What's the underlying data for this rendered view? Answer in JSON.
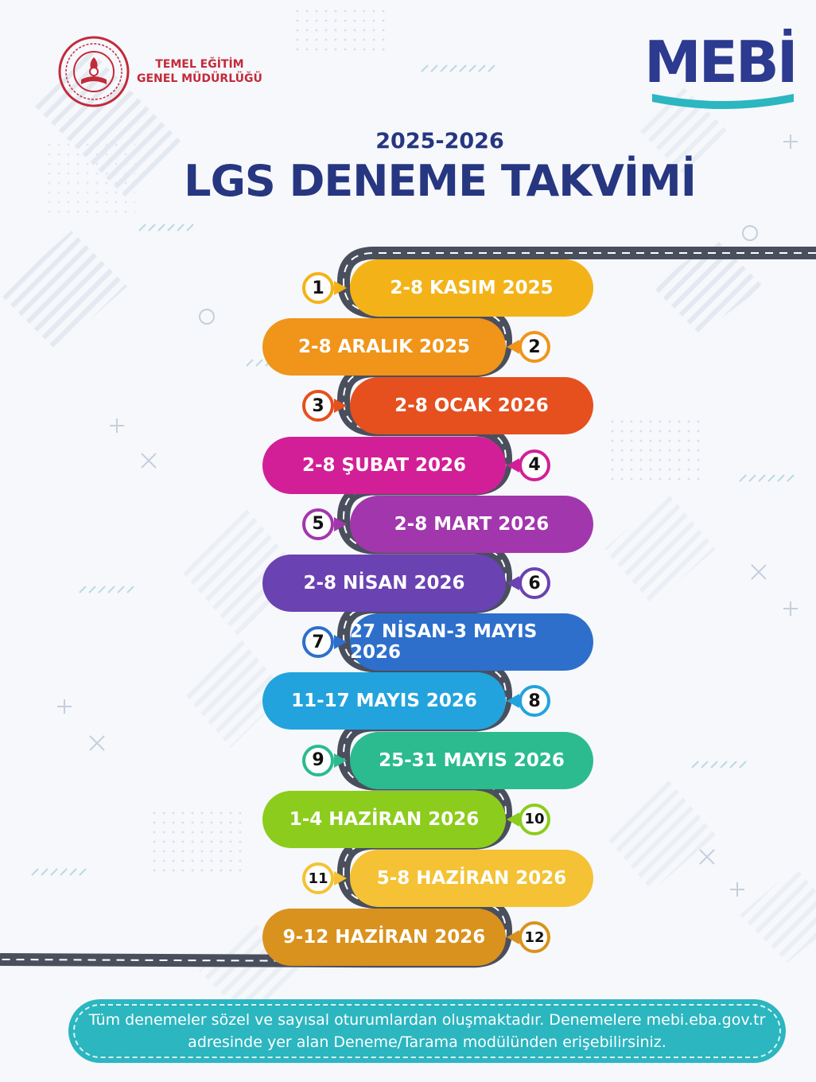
{
  "header": {
    "org_line1": "TEMEL EĞİTİM",
    "org_line2": "GENEL MÜDÜRLÜĞÜ",
    "brand": "MEBİ",
    "year": "2025-2026",
    "title": "LGS DENEME TAKVİMİ"
  },
  "colors": {
    "title": "#263680",
    "brand": "#2c3a8f",
    "accent": "#2bb6c0",
    "road": "#4a4f5e"
  },
  "exams": [
    {
      "number": "1",
      "label": "2-8 KASIM 2025",
      "color": "#f3b318"
    },
    {
      "number": "2",
      "label": "2-8 ARALIK 2025",
      "color": "#f0941a"
    },
    {
      "number": "3",
      "label": "2-8 OCAK 2026",
      "color": "#e5501e"
    },
    {
      "number": "4",
      "label": "2-8 ŞUBAT 2026",
      "color": "#d21f97"
    },
    {
      "number": "5",
      "label": "2-8 MART 2026",
      "color": "#a236ad"
    },
    {
      "number": "6",
      "label": "2-8 NİSAN 2026",
      "color": "#6a42b2"
    },
    {
      "number": "7",
      "label": "27 NİSAN-3 MAYIS 2026",
      "color": "#2d6fcb"
    },
    {
      "number": "8",
      "label": "11-17 MAYIS 2026",
      "color": "#22a3dd"
    },
    {
      "number": "9",
      "label": "25-31 MAYIS 2026",
      "color": "#2bbb8e"
    },
    {
      "number": "10",
      "label": "1-4 HAZİRAN 2026",
      "color": "#8ccc1d"
    },
    {
      "number": "11",
      "label": "5-8 HAZİRAN 2026",
      "color": "#f4c234"
    },
    {
      "number": "12",
      "label": "9-12 HAZİRAN 2026",
      "color": "#d9921e"
    }
  ],
  "note": {
    "line1": "Tüm denemeler sözel ve sayısal oturumlardan oluşmaktadır. Denemelere mebi.eba.gov.tr",
    "line2": "adresinde yer alan Deneme/Tarama modülünden erişebilirsiniz."
  }
}
